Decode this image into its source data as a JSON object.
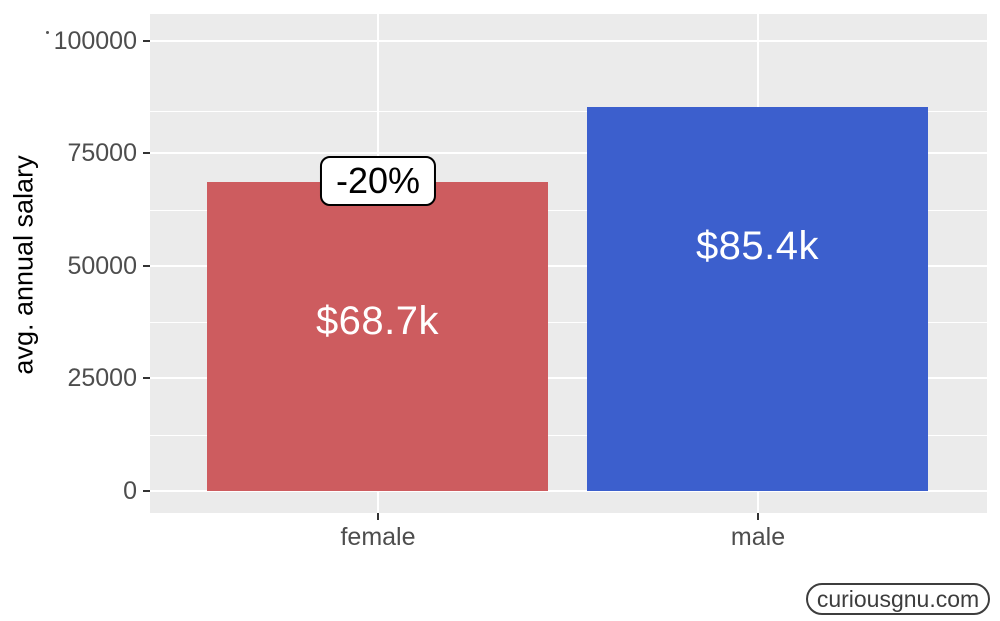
{
  "chart_data": {
    "type": "bar",
    "title": "",
    "categories": [
      "female",
      "male"
    ],
    "values": [
      68700,
      85400
    ],
    "bar_labels": [
      "$68.7k",
      "$85.4k"
    ],
    "bar_colors": [
      "#CD5C5F",
      "#3C5FCD"
    ],
    "annotation": {
      "text": "-20%",
      "attached_to": "female"
    },
    "xlabel": "",
    "ylabel": "avg. annual salary",
    "yticks": [
      "0",
      "25000",
      "50000",
      "75000",
      "100000"
    ],
    "ytick_values": [
      0,
      25000,
      50000,
      75000,
      100000
    ],
    "ylim": [
      0,
      100000
    ],
    "grid": "white major and minor horizontal lines, white vertical lines at category centers",
    "legend_position": "none",
    "panel_background": "#EBEBEB",
    "axis_text_color": "#4D4D4D"
  },
  "watermark": {
    "label": "curiousgnu.com"
  }
}
